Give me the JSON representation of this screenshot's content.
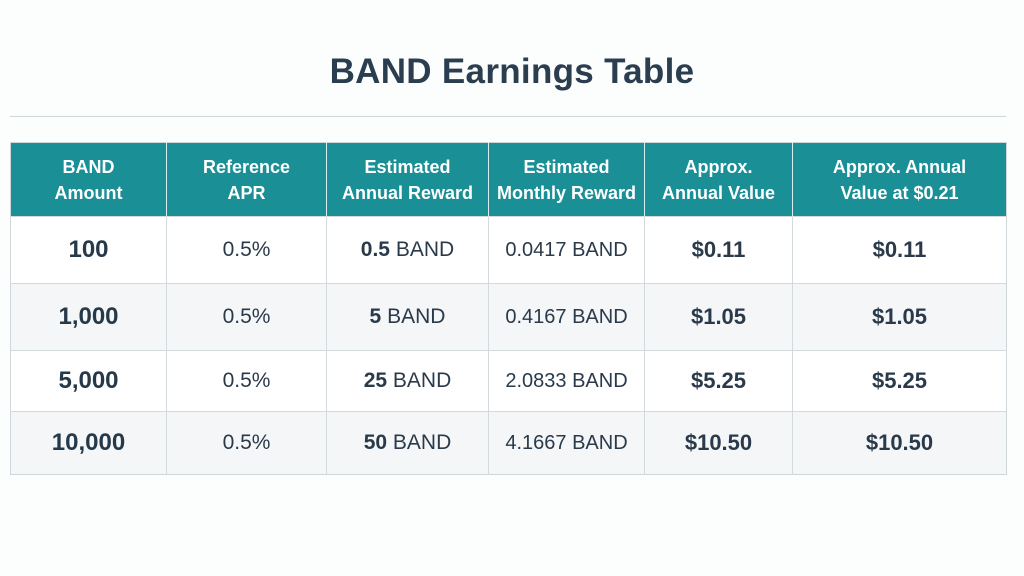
{
  "title": "BAND Earnings Table",
  "table": {
    "headers": [
      [
        "BAND",
        "Amount"
      ],
      [
        "Reference",
        "APR"
      ],
      [
        "Estimated",
        "Annual Reward"
      ],
      [
        "Estimated",
        "Monthly Reward"
      ],
      [
        "Approx.",
        "Annual Value"
      ],
      [
        "Approx. Annual",
        "Value at $0.21"
      ]
    ],
    "rows": [
      {
        "amount": "100",
        "apr": "0.5%",
        "annual_num": "0.5",
        "annual_unit": "BAND",
        "monthly": "0.0417 BAND",
        "value": "$0.11",
        "value_021": "$0.11"
      },
      {
        "amount": "1,000",
        "apr": "0.5%",
        "annual_num": "5",
        "annual_unit": "BAND",
        "monthly": "0.4167 BAND",
        "value": "$1.05",
        "value_021": "$1.05"
      },
      {
        "amount": "5,000",
        "apr": "0.5%",
        "annual_num": "25",
        "annual_unit": "BAND",
        "monthly": "2.0833 BAND",
        "value": "$5.25",
        "value_021": "$5.25"
      },
      {
        "amount": "10,000",
        "apr": "0.5%",
        "annual_num": "50",
        "annual_unit": "BAND",
        "monthly": "4.1667 BAND",
        "value": "$10.50",
        "value_021": "$10.50"
      }
    ]
  },
  "colors": {
    "header_bg": "#1a8f95",
    "header_text": "#ffffff",
    "title_text": "#2b3e50"
  }
}
